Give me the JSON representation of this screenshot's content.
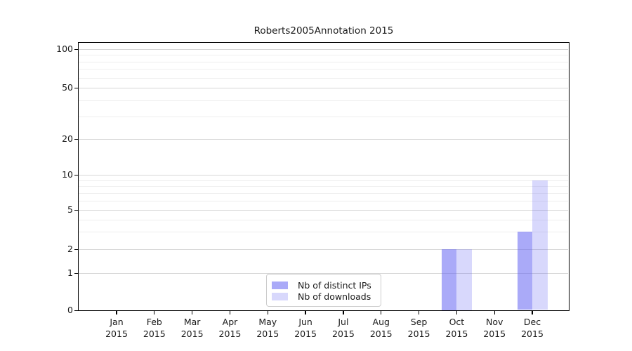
{
  "chart_data": {
    "type": "bar",
    "title": "Roberts2005Annotation 2015",
    "categories": [
      "Jan",
      "Feb",
      "Mar",
      "Apr",
      "May",
      "Jun",
      "Jul",
      "Aug",
      "Sep",
      "Oct",
      "Nov",
      "Dec"
    ],
    "year_label": "2015",
    "series": [
      {
        "name": "Nb of distinct IPs",
        "color": "#6464f2",
        "alpha": 0.55,
        "values": [
          0,
          0,
          0,
          0,
          0,
          0,
          0,
          0,
          0,
          2,
          0,
          3
        ]
      },
      {
        "name": "Nb of downloads",
        "color": "#6464f2",
        "alpha": 0.25,
        "values": [
          0,
          0,
          0,
          0,
          0,
          0,
          0,
          0,
          0,
          2,
          0,
          9
        ]
      }
    ],
    "y_axis": {
      "scale": "log-like",
      "range": [
        0,
        100
      ],
      "major_ticks": [
        0,
        1,
        2,
        5,
        10,
        20,
        50,
        100
      ],
      "minor_ticks": [
        3,
        4,
        6,
        7,
        8,
        9,
        30,
        40,
        60,
        70,
        80,
        90
      ]
    },
    "legend": {
      "position": "lower center"
    },
    "grid": {
      "on": true,
      "major_color": "#d6d6d6",
      "minor_color": "#eeeeee"
    },
    "axis_color": "#000000",
    "background": "#ffffff"
  }
}
